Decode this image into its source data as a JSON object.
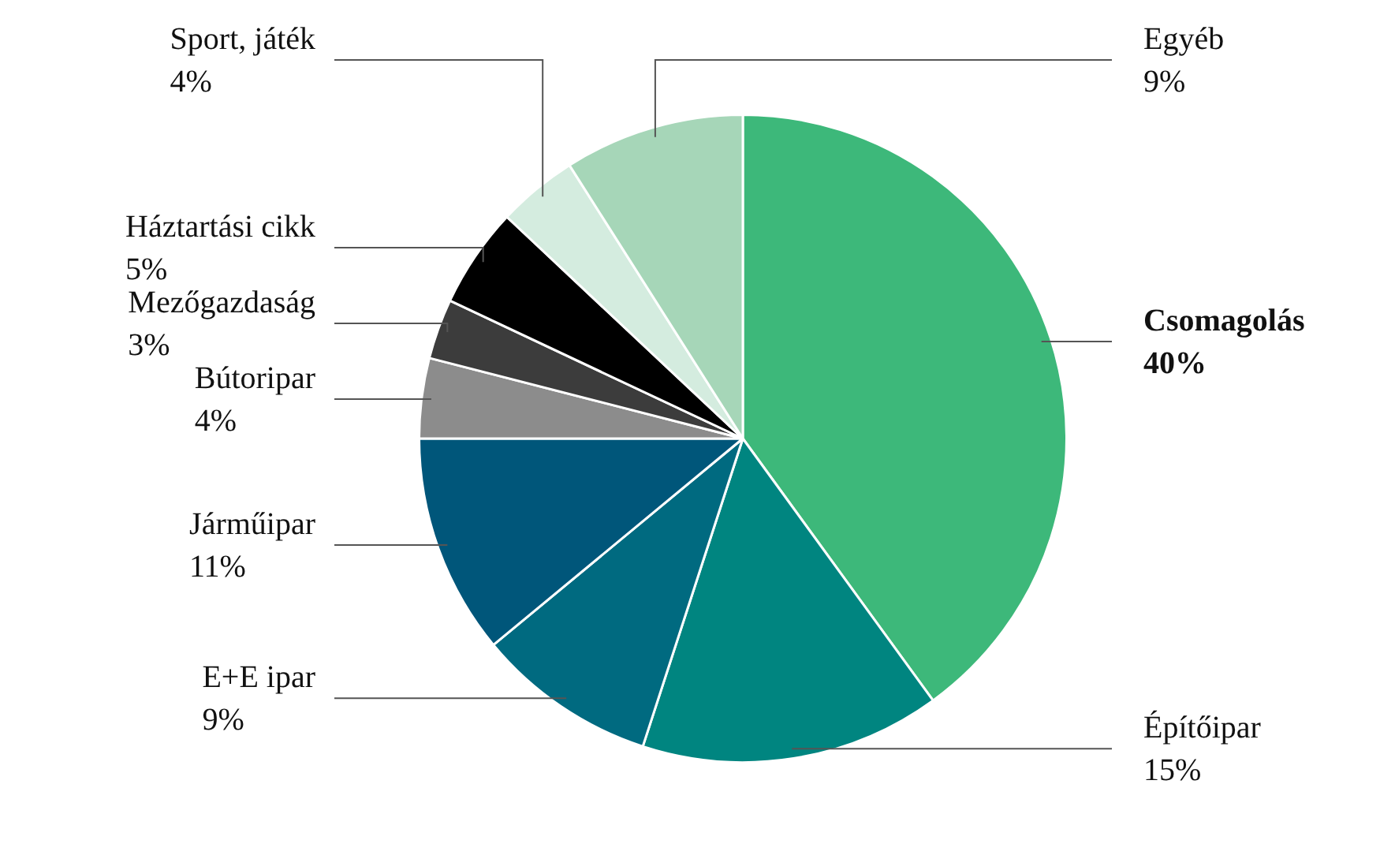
{
  "chart_data": {
    "type": "pie",
    "categories": [
      "Csomagolás",
      "Építőipar",
      "E+E ipar",
      "Járműipar",
      "Bútoripar",
      "Mezőgazdaság",
      "Háztartási cikk",
      "Sport, játék",
      "Egyéb"
    ],
    "values": [
      40,
      15,
      9,
      11,
      4,
      3,
      5,
      4,
      9
    ],
    "value_labels": [
      "40%",
      "15%",
      "9%",
      "11%",
      "4%",
      "3%",
      "5%",
      "4%",
      "9%"
    ],
    "colors": [
      "#3db87a",
      "#008580",
      "#006a80",
      "#00567a",
      "#8c8c8c",
      "#3c3c3c",
      "#000000",
      "#d4ecdf",
      "#a6d6b8"
    ],
    "legend": false
  }
}
